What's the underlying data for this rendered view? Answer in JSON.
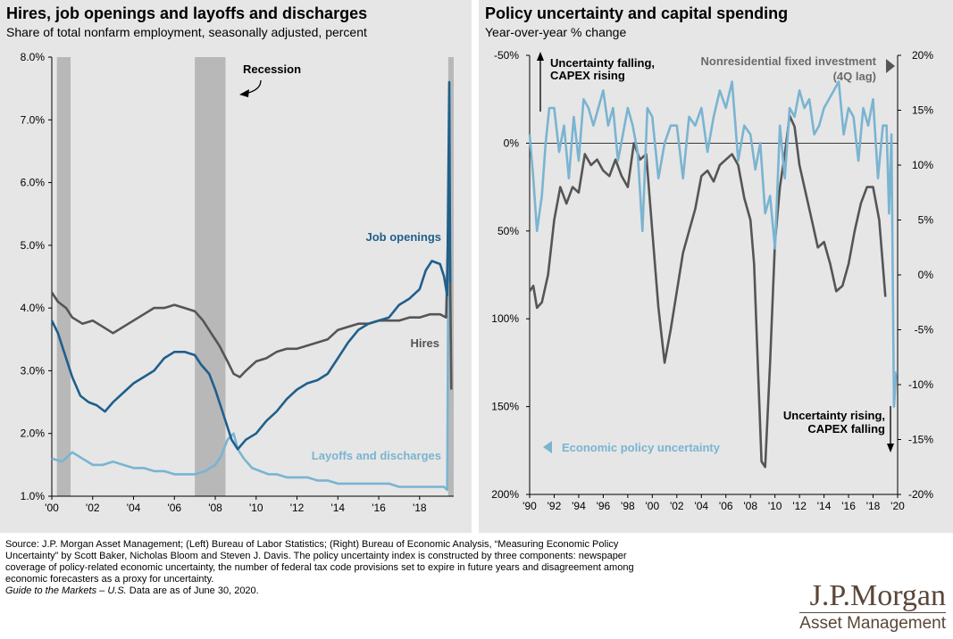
{
  "chart_data": [
    {
      "type": "line",
      "title": "Hires, job openings and layoffs and discharges",
      "subtitle": "Share of total nonfarm employment, seasonally adjusted, percent",
      "ylim": [
        1.0,
        8.0
      ],
      "y_ticks": [
        "8.0%",
        "7.0%",
        "6.0%",
        "5.0%",
        "4.0%",
        "3.0%",
        "2.0%",
        "1.0%"
      ],
      "xlim": [
        2000,
        2019.67
      ],
      "x_ticks": [
        "'00",
        "'02",
        "'04",
        "'06",
        "'08",
        "'10",
        "'12",
        "'14",
        "'16",
        "'18"
      ],
      "recessions": [
        [
          2000.25,
          2000.92
        ],
        [
          2007.0,
          2008.5
        ],
        [
          2019.4,
          2019.67
        ]
      ],
      "recession_label": "Recession",
      "series": [
        {
          "name": "Job openings",
          "color": "#1f5f8b",
          "x": [
            2000.0,
            2000.3,
            2000.6,
            2001.0,
            2001.4,
            2001.8,
            2002.2,
            2002.6,
            2003.0,
            2003.5,
            2004.0,
            2004.5,
            2005.0,
            2005.5,
            2006.0,
            2006.5,
            2007.0,
            2007.3,
            2007.7,
            2008.0,
            2008.4,
            2008.8,
            2009.1,
            2009.5,
            2010.0,
            2010.5,
            2011.0,
            2011.5,
            2012.0,
            2012.5,
            2013.0,
            2013.5,
            2014.0,
            2014.5,
            2015.0,
            2015.5,
            2016.0,
            2016.5,
            2017.0,
            2017.5,
            2018.0,
            2018.3,
            2018.6,
            2019.0,
            2019.2,
            2019.35,
            2019.45,
            2019.5
          ],
          "values": [
            3.8,
            3.6,
            3.3,
            2.9,
            2.6,
            2.5,
            2.45,
            2.35,
            2.5,
            2.65,
            2.8,
            2.9,
            3.0,
            3.2,
            3.3,
            3.3,
            3.25,
            3.1,
            2.95,
            2.7,
            2.3,
            1.9,
            1.75,
            1.9,
            2.0,
            2.2,
            2.35,
            2.55,
            2.7,
            2.8,
            2.85,
            2.95,
            3.2,
            3.45,
            3.65,
            3.75,
            3.8,
            3.85,
            4.05,
            4.15,
            4.3,
            4.6,
            4.75,
            4.7,
            4.5,
            4.2,
            7.6,
            4.4
          ]
        },
        {
          "name": "Hires",
          "color": "#555555",
          "x": [
            2000.0,
            2000.3,
            2000.7,
            2001.0,
            2001.5,
            2002.0,
            2002.5,
            2003.0,
            2003.5,
            2004.0,
            2004.5,
            2005.0,
            2005.5,
            2006.0,
            2006.5,
            2007.0,
            2007.4,
            2007.8,
            2008.2,
            2008.6,
            2008.9,
            2009.2,
            2009.5,
            2010.0,
            2010.5,
            2011.0,
            2011.5,
            2012.0,
            2012.5,
            2013.0,
            2013.5,
            2014.0,
            2014.5,
            2015.0,
            2015.5,
            2016.0,
            2016.5,
            2017.0,
            2017.5,
            2018.0,
            2018.5,
            2019.0,
            2019.3,
            2019.45,
            2019.55
          ],
          "values": [
            4.25,
            4.1,
            4.0,
            3.85,
            3.75,
            3.8,
            3.7,
            3.6,
            3.7,
            3.8,
            3.9,
            4.0,
            4.0,
            4.05,
            4.0,
            3.95,
            3.8,
            3.6,
            3.4,
            3.15,
            2.95,
            2.9,
            3.0,
            3.15,
            3.2,
            3.3,
            3.35,
            3.35,
            3.4,
            3.45,
            3.5,
            3.65,
            3.7,
            3.75,
            3.75,
            3.8,
            3.8,
            3.8,
            3.85,
            3.85,
            3.9,
            3.9,
            3.85,
            6.0,
            2.7
          ]
        },
        {
          "name": "Layoffs and discharges",
          "color": "#7ab4d1",
          "x": [
            2000.0,
            2000.5,
            2001.0,
            2001.5,
            2002.0,
            2002.5,
            2003.0,
            2003.5,
            2004.0,
            2004.5,
            2005.0,
            2005.5,
            2006.0,
            2006.5,
            2007.0,
            2007.5,
            2008.0,
            2008.3,
            2008.6,
            2008.9,
            2009.1,
            2009.4,
            2009.8,
            2010.2,
            2010.6,
            2011.0,
            2011.5,
            2012.0,
            2012.5,
            2013.0,
            2013.5,
            2014.0,
            2014.5,
            2015.0,
            2015.5,
            2016.0,
            2016.5,
            2017.0,
            2017.5,
            2018.0,
            2018.5,
            2019.0,
            2019.2,
            2019.35,
            2019.45
          ],
          "values": [
            1.6,
            1.55,
            1.7,
            1.6,
            1.5,
            1.5,
            1.55,
            1.5,
            1.45,
            1.45,
            1.4,
            1.4,
            1.35,
            1.35,
            1.35,
            1.4,
            1.5,
            1.65,
            1.9,
            2.0,
            1.75,
            1.6,
            1.45,
            1.4,
            1.35,
            1.35,
            1.3,
            1.3,
            1.3,
            1.25,
            1.25,
            1.2,
            1.2,
            1.2,
            1.2,
            1.2,
            1.2,
            1.15,
            1.15,
            1.15,
            1.15,
            1.15,
            1.15,
            1.1,
            7.5
          ]
        }
      ]
    },
    {
      "type": "line",
      "title": "Policy uncertainty and capital spending",
      "subtitle": "Year-over-year % change",
      "xlim": [
        1990,
        2020
      ],
      "x_ticks": [
        "'90",
        "'92",
        "'94",
        "'96",
        "'98",
        "'00",
        "'02",
        "'04",
        "'06",
        "'08",
        "'10",
        "'12",
        "'14",
        "'16",
        "'18",
        "'20"
      ],
      "left_axis": {
        "ylim": [
          -50,
          200
        ],
        "inverted": true,
        "ticks": [
          "-50%",
          "0%",
          "50%",
          "100%",
          "150%",
          "200%"
        ]
      },
      "right_axis": {
        "ylim": [
          -20,
          20
        ],
        "ticks": [
          "20%",
          "15%",
          "10%",
          "5%",
          "0%",
          "-5%",
          "-10%",
          "-15%",
          "-20%"
        ]
      },
      "series": [
        {
          "name": "Economic policy uncertainty",
          "axis": "left",
          "color": "#7ab4d1",
          "x": [
            1990.0,
            1990.3,
            1990.6,
            1991.0,
            1991.3,
            1991.6,
            1992.0,
            1992.4,
            1992.8,
            1993.2,
            1993.6,
            1994.0,
            1994.4,
            1994.8,
            1995.2,
            1995.6,
            1996.0,
            1996.4,
            1996.8,
            1997.2,
            1997.6,
            1998.0,
            1998.4,
            1998.8,
            1999.2,
            1999.6,
            2000.0,
            2000.5,
            2001.0,
            2001.5,
            2002.0,
            2002.5,
            2003.0,
            2003.5,
            2004.0,
            2004.5,
            2005.0,
            2005.5,
            2006.0,
            2006.5,
            2007.0,
            2007.5,
            2008.0,
            2008.4,
            2008.8,
            2009.2,
            2009.6,
            2010.0,
            2010.4,
            2010.8,
            2011.2,
            2011.6,
            2012.0,
            2012.4,
            2012.8,
            2013.2,
            2013.6,
            2014.0,
            2014.4,
            2014.8,
            2015.2,
            2015.6,
            2016.0,
            2016.4,
            2016.8,
            2017.2,
            2017.6,
            2018.0,
            2018.4,
            2018.8,
            2019.1,
            2019.3,
            2019.5,
            2019.7,
            2019.9
          ],
          "values": [
            -5,
            20,
            50,
            30,
            0,
            -20,
            -20,
            5,
            -10,
            20,
            -15,
            10,
            -25,
            -20,
            -10,
            -20,
            -30,
            -10,
            -20,
            10,
            -5,
            -20,
            -10,
            5,
            50,
            -20,
            -15,
            20,
            0,
            -10,
            -10,
            20,
            -15,
            -10,
            -20,
            5,
            -15,
            -30,
            -20,
            -35,
            10,
            -10,
            -5,
            15,
            0,
            40,
            30,
            60,
            -10,
            20,
            -20,
            -15,
            -30,
            -20,
            -25,
            -5,
            -10,
            -20,
            -25,
            -30,
            -35,
            -5,
            -20,
            -15,
            10,
            -20,
            -10,
            -25,
            20,
            -10,
            -10,
            40,
            -5,
            150,
            130
          ]
        },
        {
          "name": "Nonresidential fixed investment (4Q lag)",
          "axis": "right",
          "color": "#555555",
          "x": [
            1990.0,
            1990.3,
            1990.6,
            1991.0,
            1991.5,
            1992.0,
            1992.5,
            1993.0,
            1993.5,
            1994.0,
            1994.5,
            1995.0,
            1995.5,
            1996.0,
            1996.5,
            1997.0,
            1997.5,
            1998.0,
            1998.5,
            1999.0,
            1999.5,
            2000.0,
            2000.5,
            2001.0,
            2001.5,
            2002.0,
            2002.5,
            2003.0,
            2003.5,
            2004.0,
            2004.5,
            2005.0,
            2005.5,
            2006.0,
            2006.5,
            2007.0,
            2007.5,
            2008.0,
            2008.3,
            2008.6,
            2008.9,
            2009.2,
            2009.6,
            2010.0,
            2010.4,
            2010.8,
            2011.2,
            2011.6,
            2012.0,
            2012.5,
            2013.0,
            2013.5,
            2014.0,
            2014.5,
            2015.0,
            2015.5,
            2016.0,
            2016.5,
            2017.0,
            2017.5,
            2018.0,
            2018.5,
            2019.0
          ],
          "values": [
            -1.5,
            -1.0,
            -3.0,
            -2.5,
            0.0,
            5.0,
            8.0,
            6.5,
            8.0,
            7.5,
            11.0,
            10.0,
            10.5,
            9.5,
            9.0,
            10.5,
            9.0,
            8.0,
            12.0,
            10.5,
            11.0,
            4.0,
            -3.0,
            -8.0,
            -5.0,
            -1.5,
            2.0,
            4.0,
            6.0,
            9.0,
            9.5,
            8.5,
            10.0,
            10.5,
            11.0,
            10.0,
            7.0,
            5.0,
            1.0,
            -8.0,
            -17.0,
            -17.5,
            -8.0,
            3.0,
            8.0,
            11.0,
            14.5,
            13.5,
            10.0,
            7.5,
            5.0,
            2.5,
            3.0,
            1.0,
            -1.5,
            -1.0,
            1.0,
            4.0,
            6.5,
            8.0,
            8.0,
            5.0,
            -2.0
          ]
        }
      ],
      "annotations": {
        "top_left": [
          "Uncertainty falling,",
          "CAPEX rising"
        ],
        "top_right": [
          "Nonresidential fixed investment",
          "(4Q lag)"
        ],
        "bottom_right": [
          "Uncertainty rising,",
          "CAPEX falling"
        ],
        "bottom_left": "Economic policy uncertainty"
      }
    }
  ],
  "labels": {
    "job_openings": "Job openings",
    "hires": "Hires",
    "layoffs": "Layoffs and discharges"
  },
  "footnote": {
    "source_lines": [
      "Source: J.P. Morgan Asset Management; (Left) Bureau of Labor Statistics; (Right) Bureau of Economic Analysis, “Measuring Economic Policy",
      "Uncertainty” by Scott Baker, Nicholas Bloom and Steven J. Davis. The policy uncertainty index is constructed by three components: newspaper",
      "coverage of policy-related economic uncertainty, the number of federal tax code provisions set to expire in future years and disagreement among",
      "economic forecasters as a proxy for uncertainty."
    ],
    "guide_title": "Guide to the Markets – U.S.",
    "guide_rest": " Data are as of June 30, 2020."
  },
  "logo": {
    "main": "J.P.Morgan",
    "sub": "Asset Management"
  },
  "colors": {
    "panel_bg": "#e6e6e6",
    "recession": "#b8b8b8",
    "job_openings": "#1f5f8b",
    "hires": "#555555",
    "layoffs": "#7ab4d1"
  }
}
